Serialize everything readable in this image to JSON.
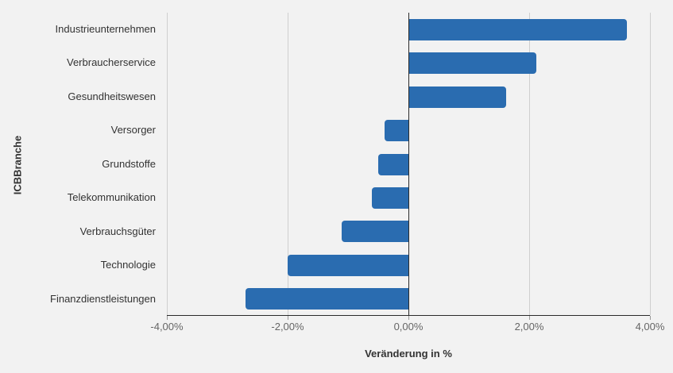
{
  "chart_data": {
    "type": "bar",
    "orientation": "horizontal",
    "title": "",
    "xlabel": "Veränderung in %",
    "ylabel": "ICBBranche",
    "categories": [
      "Industrieunternehmen",
      "Verbraucherservice",
      "Gesundheitswesen",
      "Versorger",
      "Grundstoffe",
      "Telekommunikation",
      "Verbrauchsgüter",
      "Technologie",
      "Finanzdienstleistungen"
    ],
    "values": [
      3.6,
      2.1,
      1.6,
      -0.4,
      -0.5,
      -0.6,
      -1.1,
      -2.0,
      -2.7
    ],
    "xlim": [
      -4,
      4
    ],
    "xticks": [
      -4,
      -2,
      0,
      2,
      4
    ],
    "xtick_labels": [
      "-4,00%",
      "-2,00%",
      "0,00%",
      "2,00%",
      "4,00%"
    ],
    "grid": true,
    "legend": "none",
    "bar_color": "#2a6cb0"
  },
  "colors": {
    "background": "#f2f2f2",
    "gridline": "#cfcfcf",
    "axis_line": "#2b2b2b",
    "bar": "#2a6cb0",
    "tick_label": "#666666",
    "category_label": "#333333"
  }
}
